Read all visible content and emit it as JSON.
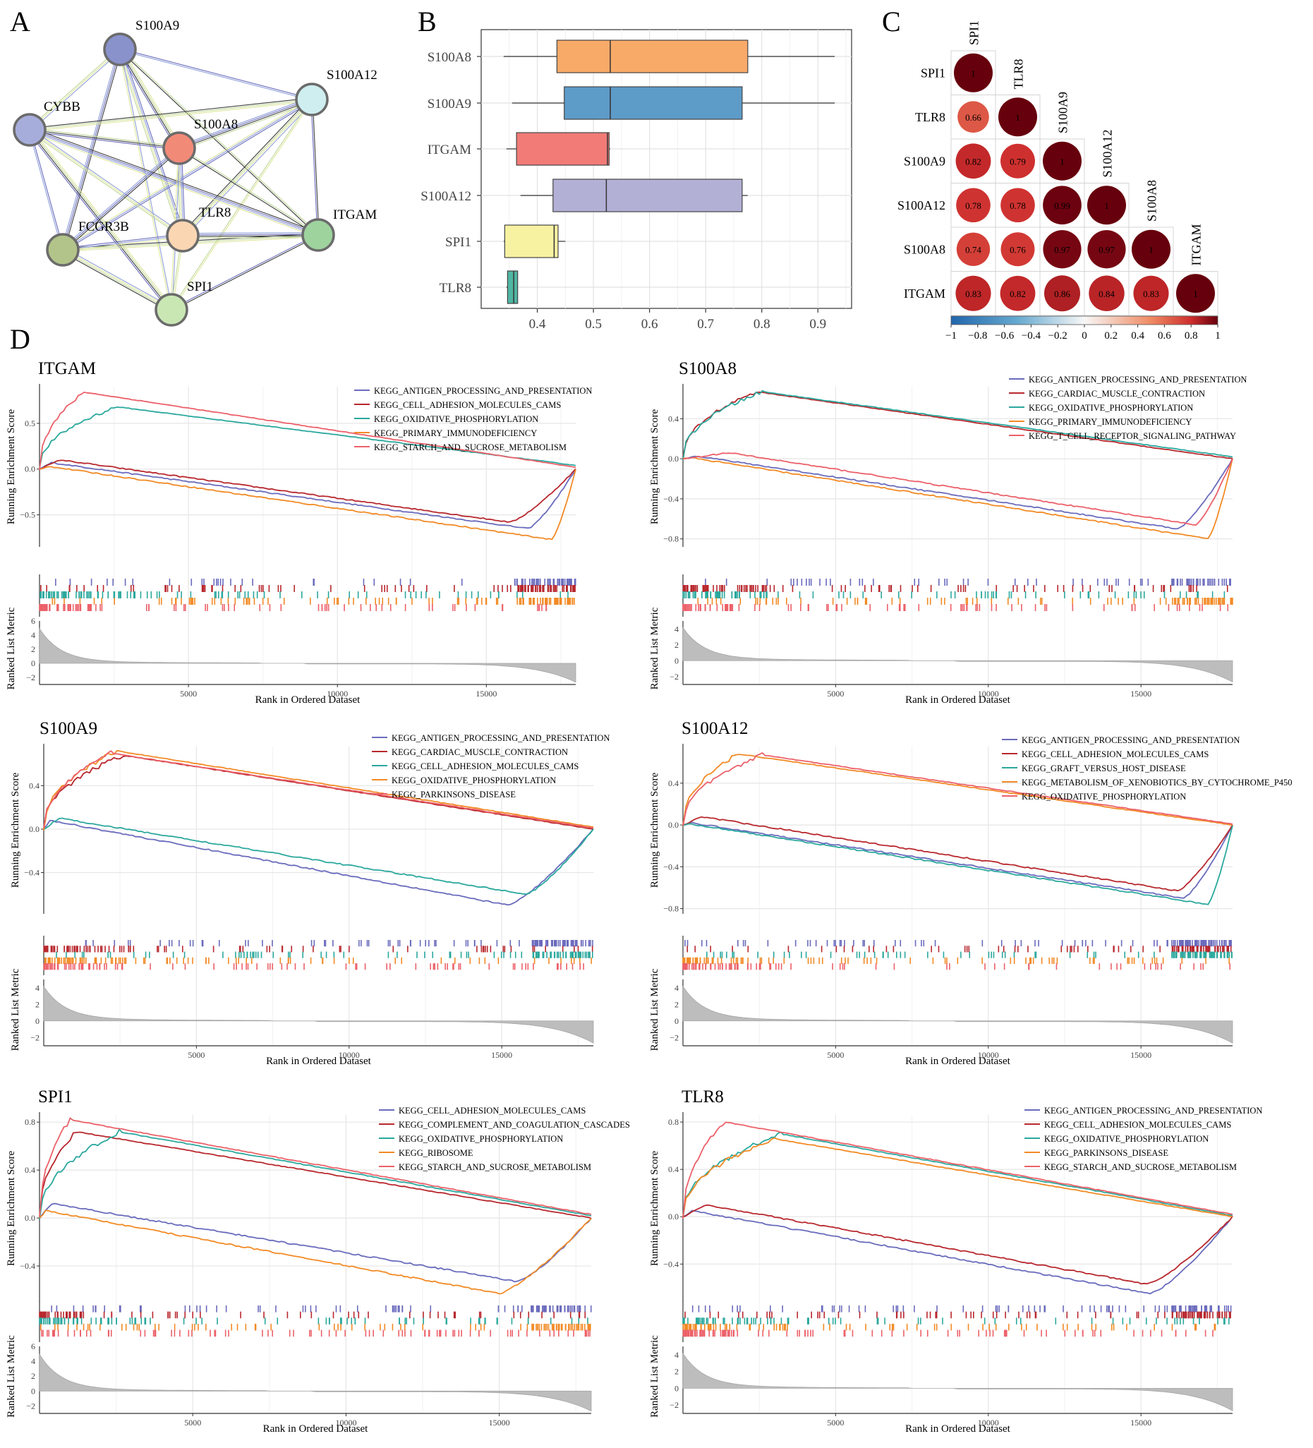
{
  "panel_labels": {
    "A": "A",
    "B": "B",
    "C": "C",
    "D": "D"
  },
  "colors": {
    "purple": "#6a6bbd",
    "darkred": "#b8272d",
    "teal": "#2aa89d",
    "orange": "#f28a25",
    "pink": "#ec6069",
    "net_S100A9": "#8a92cc",
    "net_S100A12": "#cfeef0",
    "net_CYBB": "#a7addb",
    "net_S100A8": "#f28a78",
    "net_FCGR3B": "#b2c489",
    "net_TLR8": "#fbd6b3",
    "net_ITGAM": "#9ed39e",
    "net_SPI1": "#c9e7b3",
    "box_S100A8": "#f8aa69",
    "box_S100A9": "#5d9bc8",
    "box_ITGAM": "#f27b77",
    "box_S100A12": "#b3b0d6",
    "box_SPI1": "#f7f1a2",
    "box_TLR8": "#50b5a2"
  },
  "chart_data": [
    {
      "type": "network",
      "panel": "A",
      "nodes": [
        "S100A9",
        "S100A12",
        "CYBB",
        "S100A8",
        "ITGAM",
        "FCGR3B",
        "TLR8",
        "SPI1"
      ],
      "edges": [
        [
          "S100A9",
          "S100A12"
        ],
        [
          "S100A9",
          "CYBB"
        ],
        [
          "S100A9",
          "S100A8"
        ],
        [
          "S100A9",
          "ITGAM"
        ],
        [
          "S100A9",
          "FCGR3B"
        ],
        [
          "S100A9",
          "TLR8"
        ],
        [
          "S100A9",
          "SPI1"
        ],
        [
          "S100A12",
          "CYBB"
        ],
        [
          "S100A12",
          "S100A8"
        ],
        [
          "S100A12",
          "ITGAM"
        ],
        [
          "S100A12",
          "FCGR3B"
        ],
        [
          "S100A12",
          "TLR8"
        ],
        [
          "S100A12",
          "SPI1"
        ],
        [
          "CYBB",
          "S100A8"
        ],
        [
          "CYBB",
          "ITGAM"
        ],
        [
          "CYBB",
          "FCGR3B"
        ],
        [
          "CYBB",
          "TLR8"
        ],
        [
          "CYBB",
          "SPI1"
        ],
        [
          "S100A8",
          "ITGAM"
        ],
        [
          "S100A8",
          "FCGR3B"
        ],
        [
          "S100A8",
          "TLR8"
        ],
        [
          "S100A8",
          "SPI1"
        ],
        [
          "ITGAM",
          "FCGR3B"
        ],
        [
          "ITGAM",
          "TLR8"
        ],
        [
          "ITGAM",
          "SPI1"
        ],
        [
          "FCGR3B",
          "TLR8"
        ],
        [
          "FCGR3B",
          "SPI1"
        ],
        [
          "TLR8",
          "SPI1"
        ]
      ]
    },
    {
      "type": "boxplot",
      "panel": "B",
      "categories": [
        "S100A8",
        "S100A9",
        "ITGAM",
        "S100A12",
        "SPI1",
        "TLR8"
      ],
      "stats": [
        {
          "min": 0.34,
          "q1": 0.435,
          "median": 0.53,
          "q3": 0.775,
          "max": 0.93
        },
        {
          "min": 0.355,
          "q1": 0.448,
          "median": 0.53,
          "q3": 0.765,
          "max": 0.93
        },
        {
          "min": 0.345,
          "q1": 0.363,
          "median": 0.525,
          "q3": 0.528,
          "max": 0.53
        },
        {
          "min": 0.37,
          "q1": 0.428,
          "median": 0.523,
          "q3": 0.765,
          "max": 0.775
        },
        {
          "min": 0.34,
          "q1": 0.342,
          "median": 0.43,
          "q3": 0.437,
          "max": 0.45
        },
        {
          "min": 0.345,
          "q1": 0.347,
          "median": 0.358,
          "q3": 0.365,
          "max": 0.365
        }
      ],
      "xlim": [
        0.3,
        0.96
      ],
      "xticks": [
        0.4,
        0.5,
        0.6,
        0.7,
        0.8,
        0.9
      ]
    },
    {
      "type": "correlation",
      "panel": "C",
      "labels": [
        "SPI1",
        "TLR8",
        "S100A9",
        "S100A12",
        "S100A8",
        "ITGAM"
      ],
      "matrix": [
        [
          1
        ],
        [
          0.66,
          1
        ],
        [
          0.82,
          0.79,
          1
        ],
        [
          0.78,
          0.78,
          0.99,
          1
        ],
        [
          0.74,
          0.76,
          0.97,
          0.97,
          1
        ],
        [
          0.83,
          0.82,
          0.86,
          0.84,
          0.83,
          1
        ]
      ],
      "colorbar": {
        "min": -1,
        "max": 1,
        "ticks": [
          "−1",
          "−0.8",
          "−0.6",
          "−0.4",
          "−0.2",
          "0",
          "0.2",
          "0.4",
          "0.6",
          "0.8",
          "1"
        ]
      }
    },
    {
      "type": "gsea",
      "panel": "D",
      "title": "ITGAM",
      "ylabel": "Running Enrichment Score",
      "ylabel2": "Ranked List Metric",
      "xlabel": "Rank in Ordered Dataset",
      "yticks": [
        "0.5",
        "0.0",
        "−0.5"
      ],
      "ytick_values": [
        0.5,
        0.0,
        -0.5
      ],
      "ylim": [
        -0.85,
        0.9
      ],
      "metric_ticks": [
        "6",
        "4",
        "2",
        "0",
        "−2"
      ],
      "metric_values": [
        6,
        4,
        2,
        0,
        -2
      ],
      "metric_lim": [
        -3,
        6
      ],
      "xticks": [
        5000,
        10000,
        15000
      ],
      "xlim": [
        0,
        18000
      ],
      "series": [
        {
          "name": "KEGG_ANTIGEN_PROCESSING_AND_PRESENTATION",
          "color": "#6a6bbd",
          "peak_pos": 400,
          "peak": 0.07,
          "trough_pos": 16400,
          "trough": -0.65
        },
        {
          "name": "KEGG_CELL_ADHESION_MOLECULES_CAMS",
          "color": "#b8272d",
          "peak_pos": 700,
          "peak": 0.1,
          "trough_pos": 15800,
          "trough": -0.58
        },
        {
          "name": "KEGG_OXIDATIVE_PHOSPHORYLATION",
          "color": "#2aa89d",
          "peak_pos": 2600,
          "peak": 0.68,
          "end_val": 0.04
        },
        {
          "name": "KEGG_PRIMARY_IMMUNODEFICIENCY",
          "color": "#f28a25",
          "peak_pos": 300,
          "peak": 0.03,
          "trough_pos": 17200,
          "trough": -0.77
        },
        {
          "name": "KEGG_STARCH_AND_SUCROSE_METABOLISM",
          "color": "#ec6069",
          "peak_pos": 1500,
          "peak": 0.84,
          "end_val": 0.02
        }
      ]
    },
    {
      "type": "gsea",
      "panel": "D",
      "title": "S100A8",
      "ylabel": "Running Enrichment Score",
      "ylabel2": "Ranked List Metric",
      "xlabel": "Rank in Ordered Dataset",
      "yticks": [
        "0.4",
        "0.0",
        "−0.4",
        "−0.8"
      ],
      "ytick_values": [
        0.4,
        0.0,
        -0.4,
        -0.8
      ],
      "ylim": [
        -0.88,
        0.72
      ],
      "metric_ticks": [
        "4",
        "2",
        "0",
        "−2"
      ],
      "metric_values": [
        4,
        2,
        0,
        -2
      ],
      "metric_lim": [
        -3,
        5
      ],
      "xticks": [
        5000,
        10000,
        15000
      ],
      "xlim": [
        0,
        18000
      ],
      "series": [
        {
          "name": "KEGG_ANTIGEN_PROCESSING_AND_PRESENTATION",
          "color": "#6a6bbd",
          "peak_pos": 400,
          "peak": 0.03,
          "trough_pos": 16200,
          "trough": -0.7
        },
        {
          "name": "KEGG_CARDIAC_MUSCLE_CONTRACTION",
          "color": "#b8272d",
          "peak_pos": 2400,
          "peak": 0.67,
          "end_val": 0.0
        },
        {
          "name": "KEGG_OXIDATIVE_PHOSPHORYLATION",
          "color": "#2aa89d",
          "peak_pos": 2600,
          "peak": 0.67,
          "end_val": 0.02
        },
        {
          "name": "KEGG_PRIMARY_IMMUNODEFICIENCY",
          "color": "#f28a25",
          "peak_pos": 300,
          "peak": 0.01,
          "trough_pos": 17200,
          "trough": -0.8
        },
        {
          "name": "KEGG_T_CELL_RECEPTOR_SIGNALING_PATHWAY",
          "color": "#ec6069",
          "peak_pos": 1500,
          "peak": 0.06,
          "trough_pos": 16800,
          "trough": -0.66
        }
      ]
    },
    {
      "type": "gsea",
      "panel": "D",
      "title": "S100A9",
      "ylabel": "Running Enrichment Score",
      "ylabel2": "Ranked List Metric",
      "xlabel": "Rank in Ordered Dataset",
      "yticks": [
        "0.4",
        "0.0",
        "−0.4"
      ],
      "ytick_values": [
        0.4,
        0.0,
        -0.4
      ],
      "ylim": [
        -0.78,
        0.76
      ],
      "metric_ticks": [
        "4",
        "2",
        "0",
        "−2"
      ],
      "metric_values": [
        4,
        2,
        0,
        -2
      ],
      "metric_lim": [
        -3,
        5
      ],
      "xticks": [
        5000,
        10000,
        15000
      ],
      "xlim": [
        0,
        18000
      ],
      "series": [
        {
          "name": "KEGG_ANTIGEN_PROCESSING_AND_PRESENTATION",
          "color": "#6a6bbd",
          "peak_pos": 200,
          "peak": 0.08,
          "trough_pos": 15200,
          "trough": -0.7
        },
        {
          "name": "KEGG_CARDIAC_MUSCLE_CONTRACTION",
          "color": "#b8272d",
          "peak_pos": 2600,
          "peak": 0.68,
          "end_val": 0.0
        },
        {
          "name": "KEGG_CELL_ADHESION_MOLECULES_CAMS",
          "color": "#2aa89d",
          "peak_pos": 500,
          "peak": 0.1,
          "trough_pos": 15800,
          "trough": -0.6
        },
        {
          "name": "KEGG_OXIDATIVE_PHOSPHORYLATION",
          "color": "#f28a25",
          "peak_pos": 2400,
          "peak": 0.72,
          "end_val": 0.02
        },
        {
          "name": "KEGG_PARKINSONS_DISEASE",
          "color": "#ec6069",
          "peak_pos": 2200,
          "peak": 0.7,
          "end_val": 0.01
        }
      ]
    },
    {
      "type": "gsea",
      "panel": "D",
      "title": "S100A12",
      "ylabel": "Running Enrichment Score",
      "ylabel2": "Ranked List Metric",
      "xlabel": "Rank in Ordered Dataset",
      "yticks": [
        "0.4",
        "0.0",
        "−0.4",
        "−0.8"
      ],
      "ytick_values": [
        0.4,
        0.0,
        -0.4,
        -0.8
      ],
      "ylim": [
        -0.85,
        0.75
      ],
      "metric_ticks": [
        "4",
        "2",
        "0",
        "−2"
      ],
      "metric_values": [
        4,
        2,
        0,
        -2
      ],
      "metric_lim": [
        -3,
        5
      ],
      "xticks": [
        5000,
        10000,
        15000
      ],
      "xlim": [
        0,
        18000
      ],
      "series": [
        {
          "name": "KEGG_ANTIGEN_PROCESSING_AND_PRESENTATION",
          "color": "#6a6bbd",
          "peak_pos": 300,
          "peak": 0.02,
          "trough_pos": 16400,
          "trough": -0.7
        },
        {
          "name": "KEGG_CELL_ADHESION_MOLECULES_CAMS",
          "color": "#b8272d",
          "peak_pos": 600,
          "peak": 0.08,
          "trough_pos": 16200,
          "trough": -0.63
        },
        {
          "name": "KEGG_GRAFT_VERSUS_HOST_DISEASE",
          "color": "#2aa89d",
          "peak_pos": 200,
          "peak": 0.01,
          "trough_pos": 17200,
          "trough": -0.76
        },
        {
          "name": "KEGG_METABOLISM_OF_XENOBIOTICS_BY_CYTOCHROME_P450",
          "color": "#f28a25",
          "peak_pos": 1800,
          "peak": 0.68,
          "end_val": 0.0
        },
        {
          "name": "KEGG_OXIDATIVE_PHOSPHORYLATION",
          "color": "#ec6069",
          "peak_pos": 2600,
          "peak": 0.67,
          "end_val": 0.01
        }
      ]
    },
    {
      "type": "gsea",
      "panel": "D",
      "title": "SPI1",
      "ylabel": "Running Enrichment Score",
      "ylabel2": "Ranked List Metric",
      "xlabel": "Rank in Ordered Dataset",
      "yticks": [
        "0.8",
        "0.4",
        "0.0",
        "−0.4"
      ],
      "ytick_values": [
        0.8,
        0.4,
        0.0,
        -0.4
      ],
      "ylim": [
        -0.7,
        0.86
      ],
      "metric_ticks": [
        "6",
        "4",
        "2",
        "0",
        "−2"
      ],
      "metric_values": [
        6,
        4,
        2,
        0,
        -2
      ],
      "metric_lim": [
        -3,
        6
      ],
      "xticks": [
        5000,
        10000,
        15000
      ],
      "xlim": [
        0,
        18000
      ],
      "series": [
        {
          "name": "KEGG_CELL_ADHESION_MOLECULES_CAMS",
          "color": "#6a6bbd",
          "peak_pos": 400,
          "peak": 0.12,
          "trough_pos": 15600,
          "trough": -0.53
        },
        {
          "name": "KEGG_COMPLEMENT_AND_COAGULATION_CASCADES",
          "color": "#b8272d",
          "peak_pos": 1200,
          "peak": 0.72,
          "end_val": 0.0
        },
        {
          "name": "KEGG_OXIDATIVE_PHOSPHORYLATION",
          "color": "#2aa89d",
          "peak_pos": 2600,
          "peak": 0.72,
          "end_val": 0.02
        },
        {
          "name": "KEGG_RIBOSOME",
          "color": "#f28a25",
          "peak_pos": 200,
          "peak": 0.06,
          "trough_pos": 15000,
          "trough": -0.63
        },
        {
          "name": "KEGG_STARCH_AND_SUCROSE_METABOLISM",
          "color": "#ec6069",
          "peak_pos": 1000,
          "peak": 0.82,
          "end_val": 0.03
        }
      ]
    },
    {
      "type": "gsea",
      "panel": "D",
      "title": "TLR8",
      "ylabel": "Running Enrichment Score",
      "ylabel2": "Ranked List Metric",
      "xlabel": "Rank in Ordered Dataset",
      "yticks": [
        "0.8",
        "0.4",
        "0.0",
        "−0.4"
      ],
      "ytick_values": [
        0.8,
        0.4,
        0.0,
        -0.4
      ],
      "ylim": [
        -0.72,
        0.86
      ],
      "metric_ticks": [
        "4",
        "2",
        "0",
        "−2"
      ],
      "metric_values": [
        4,
        2,
        0,
        -2
      ],
      "metric_lim": [
        -3,
        5
      ],
      "xticks": [
        5000,
        10000,
        15000
      ],
      "xlim": [
        0,
        18000
      ],
      "series": [
        {
          "name": "KEGG_ANTIGEN_PROCESSING_AND_PRESENTATION",
          "color": "#6a6bbd",
          "peak_pos": 300,
          "peak": 0.05,
          "trough_pos": 15300,
          "trough": -0.65
        },
        {
          "name": "KEGG_CELL_ADHESION_MOLECULES_CAMS",
          "color": "#b8272d",
          "peak_pos": 800,
          "peak": 0.1,
          "trough_pos": 15200,
          "trough": -0.57
        },
        {
          "name": "KEGG_OXIDATIVE_PHOSPHORYLATION",
          "color": "#2aa89d",
          "peak_pos": 3200,
          "peak": 0.7,
          "end_val": 0.01
        },
        {
          "name": "KEGG_PARKINSONS_DISEASE",
          "color": "#f28a25",
          "peak_pos": 3000,
          "peak": 0.66,
          "end_val": 0.0
        },
        {
          "name": "KEGG_STARCH_AND_SUCROSE_METABOLISM",
          "color": "#ec6069",
          "peak_pos": 1400,
          "peak": 0.8,
          "end_val": 0.02
        }
      ]
    }
  ]
}
